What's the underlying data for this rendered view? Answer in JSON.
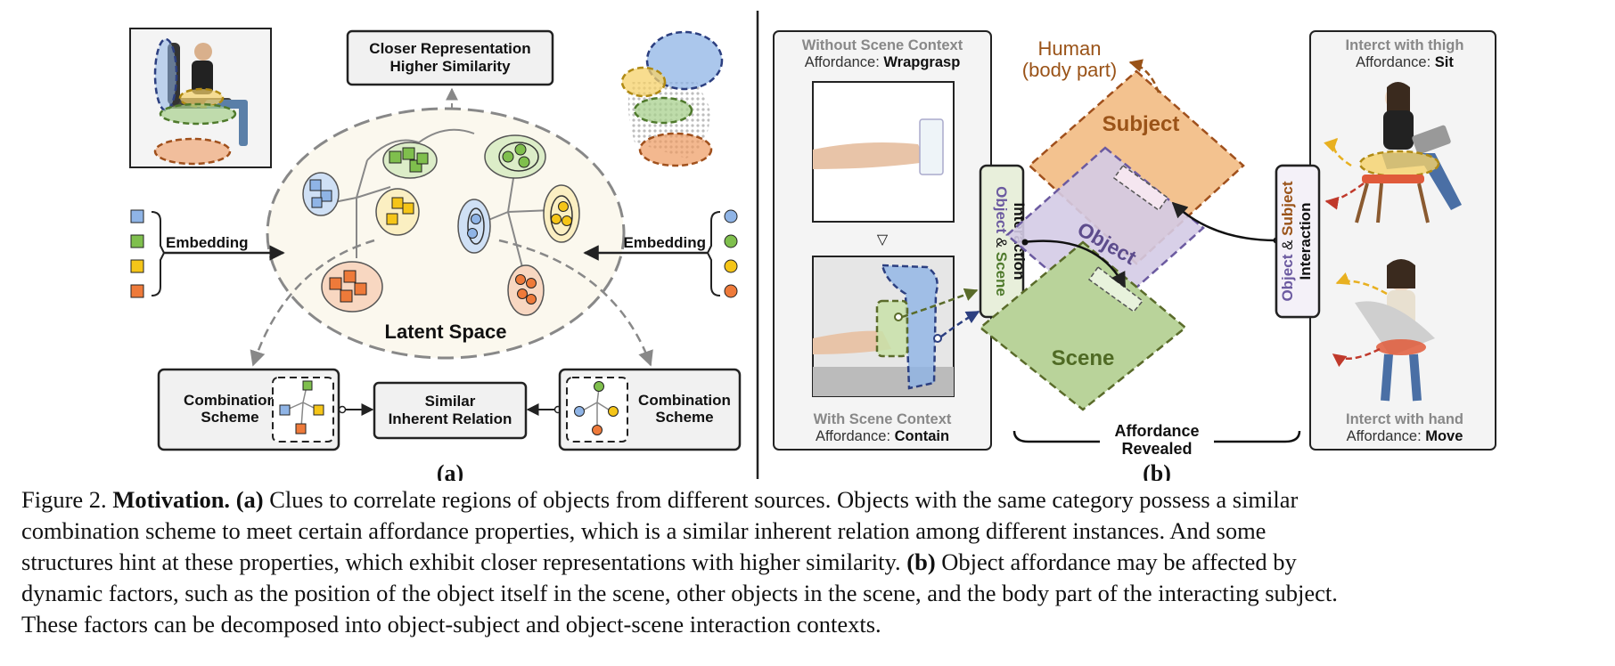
{
  "panel_a": {
    "top_box_line1": "Closer Representation",
    "top_box_line2": "Higher Similarity",
    "embedding_left": "Embedding",
    "embedding_right": "Embedding",
    "latent_space": "Latent Space",
    "combination_left_line1": "Combination",
    "combination_left_line2": "Scheme",
    "combination_right_line1": "Combination",
    "combination_right_line2": "Scheme",
    "similar_line1": "Similar",
    "similar_line2": "Inherent Relation",
    "label": "(a)"
  },
  "panel_b": {
    "without_title": "Without Scene Context",
    "without_prefix": "Affordance: ",
    "without_value": "Wrapgrasp",
    "with_title": "With Scene Context",
    "with_prefix": "Affordance: ",
    "with_value": "Contain",
    "human_line1": "Human",
    "human_line2": "(body part)",
    "subject": "Subject",
    "object": "Object",
    "scene": "Scene",
    "os_object": "Object",
    "os_amp": " & ",
    "os_scene": "Scene",
    "os_interaction": "Interaction",
    "osub_object": "Object",
    "osub_amp": " & ",
    "osub_subject": "Subject",
    "osub_interaction": "Interaction",
    "thigh_title": "Interct with thigh",
    "thigh_prefix": "Affordance: ",
    "thigh_value": "Sit",
    "hand_title": "Interct with hand",
    "hand_prefix": "Affordance: ",
    "hand_value": "Move",
    "revealed_line1": "Affordance",
    "revealed_line2": "Revealed",
    "label": "(b)"
  },
  "caption": {
    "fig": "Figure 2. ",
    "motivation": "Motivation.",
    "a_tag": "(a)",
    "line1_rest": " Clues to correlate regions of objects from different sources. Objects with the same category possess a similar",
    "line2": "combination scheme to meet certain affordance properties, which is a similar inherent relation among different instances.  And some",
    "line3_pre": "structures hint at these properties, which exhibit closer representations with higher similarity. ",
    "b_tag": "(b)",
    "line3_post": " Object affordance may be affected by",
    "line4": "dynamic factors, such as the position of the object itself in the scene, other objects in the scene, and the body part of the interacting subject.",
    "line5": "These factors can be decomposed into object-subject and object-scene interaction contexts."
  },
  "colors": {
    "blue": "#8fb4e6",
    "green": "#a8d08d",
    "yellow": "#f5d26a",
    "orange": "#ee9a60",
    "subject": "#f3c28f",
    "object": "#d4cbe6",
    "scene": "#b9d39a",
    "human_text": "#9a5318"
  },
  "icons": [
    "chair-photo-icon",
    "point-cloud-icon",
    "glass-photo-icon",
    "kettle-photo-icon",
    "person-sitting-icon",
    "person-chair-icon"
  ]
}
